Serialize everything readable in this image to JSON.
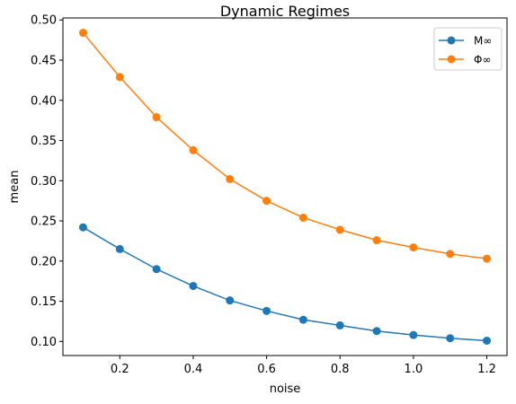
{
  "chart_data": {
    "type": "line",
    "title": "Dynamic Regimes",
    "xlabel": "noise",
    "ylabel": "mean",
    "x": [
      0.1,
      0.2,
      0.3,
      0.4,
      0.5,
      0.6,
      0.7,
      0.8,
      0.9,
      1.0,
      1.1,
      1.2
    ],
    "xlim": [
      0.045,
      1.255
    ],
    "ylim": [
      0.0825,
      0.5025
    ],
    "xticks": [
      0.2,
      0.4,
      0.6,
      0.8,
      1.0,
      1.2
    ],
    "xtick_labels": [
      "0.2",
      "0.4",
      "0.6",
      "0.8",
      "1.0",
      "1.2"
    ],
    "yticks": [
      0.1,
      0.15,
      0.2,
      0.25,
      0.3,
      0.35,
      0.4,
      0.45,
      0.5
    ],
    "ytick_labels": [
      "0.10",
      "0.15",
      "0.20",
      "0.25",
      "0.30",
      "0.35",
      "0.40",
      "0.45",
      "0.50"
    ],
    "grid": false,
    "legend_position": "top-right",
    "series": [
      {
        "name": "M∞",
        "color": "#1f77b4",
        "values": [
          0.242,
          0.215,
          0.19,
          0.169,
          0.151,
          0.138,
          0.127,
          0.12,
          0.113,
          0.108,
          0.104,
          0.101
        ]
      },
      {
        "name": "Φ∞",
        "color": "#ff7f0e",
        "values": [
          0.484,
          0.429,
          0.379,
          0.338,
          0.302,
          0.275,
          0.254,
          0.239,
          0.226,
          0.217,
          0.209,
          0.203
        ]
      }
    ]
  }
}
